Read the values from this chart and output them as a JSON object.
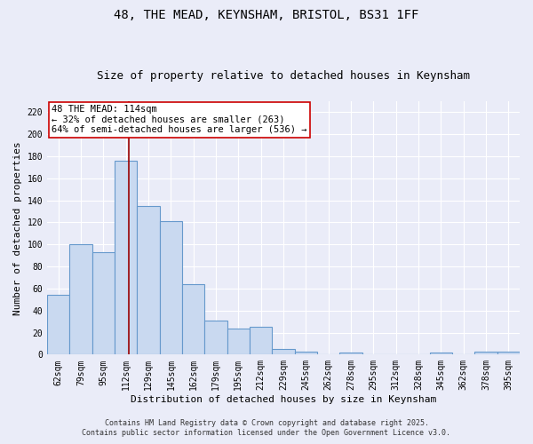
{
  "title1": "48, THE MEAD, KEYNSHAM, BRISTOL, BS31 1FF",
  "title2": "Size of property relative to detached houses in Keynsham",
  "xlabel": "Distribution of detached houses by size in Keynsham",
  "ylabel": "Number of detached properties",
  "categories": [
    "62sqm",
    "79sqm",
    "95sqm",
    "112sqm",
    "129sqm",
    "145sqm",
    "162sqm",
    "179sqm",
    "195sqm",
    "212sqm",
    "229sqm",
    "245sqm",
    "262sqm",
    "278sqm",
    "295sqm",
    "312sqm",
    "328sqm",
    "345sqm",
    "362sqm",
    "378sqm",
    "395sqm"
  ],
  "values": [
    54,
    100,
    93,
    176,
    135,
    121,
    64,
    31,
    24,
    25,
    5,
    3,
    0,
    2,
    0,
    0,
    0,
    2,
    0,
    3,
    3
  ],
  "bar_color": "#c9d9f0",
  "bar_edge_color": "#6699cc",
  "background_color": "#eaecf8",
  "grid_color": "#ffffff",
  "ylim": [
    0,
    230
  ],
  "yticks": [
    0,
    20,
    40,
    60,
    80,
    100,
    120,
    140,
    160,
    180,
    200,
    220
  ],
  "ref_line_color": "#990000",
  "annotation_text": "48 THE MEAD: 114sqm\n← 32% of detached houses are smaller (263)\n64% of semi-detached houses are larger (536) →",
  "annotation_box_color": "#ffffff",
  "annotation_box_edge": "#cc0000",
  "footer1": "Contains HM Land Registry data © Crown copyright and database right 2025.",
  "footer2": "Contains public sector information licensed under the Open Government Licence v3.0.",
  "title_fontsize": 10,
  "subtitle_fontsize": 9,
  "tick_fontsize": 7,
  "ylabel_fontsize": 8,
  "xlabel_fontsize": 8,
  "annotation_fontsize": 7.5,
  "footer_fontsize": 6
}
